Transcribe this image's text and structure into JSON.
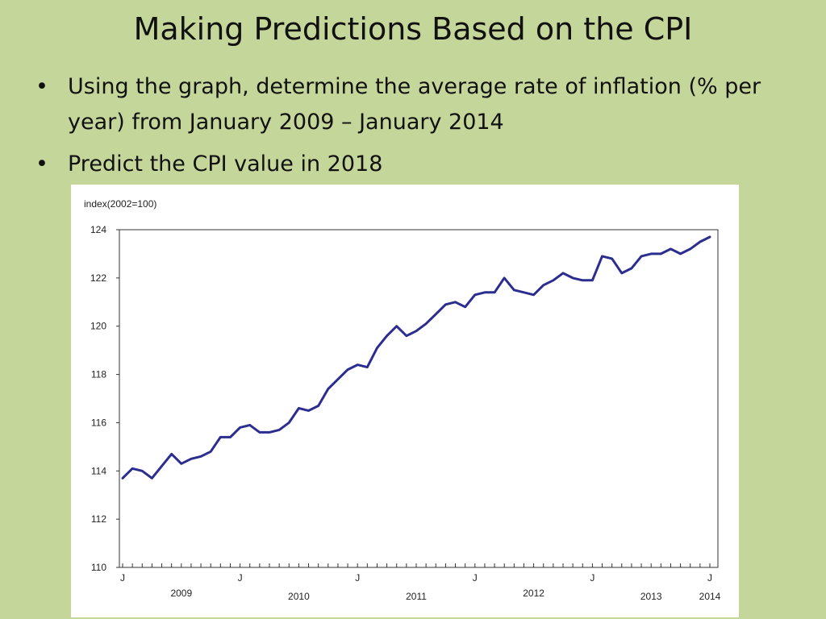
{
  "slide": {
    "title": "Making Predictions Based on the CPI",
    "bullets": [
      "Using the graph, determine the average rate of inflation (% per year) from January 2009 – January 2014",
      "Predict the CPI value in 2018"
    ]
  },
  "chart_data": {
    "type": "line",
    "title": "",
    "ylabel": "index(2002=100)",
    "xlabel": "",
    "ylim": [
      110,
      124
    ],
    "yticks": [
      110,
      112,
      114,
      116,
      118,
      120,
      122,
      124
    ],
    "grid": false,
    "line_color": "#2b2e8f",
    "x_ticks": [
      {
        "month_index": 0,
        "label": "J"
      },
      {
        "month_index": 12,
        "label": "J"
      },
      {
        "month_index": 24,
        "label": "J"
      },
      {
        "month_index": 36,
        "label": "J"
      },
      {
        "month_index": 48,
        "label": "J"
      },
      {
        "month_index": 60,
        "label": "J"
      }
    ],
    "year_labels": [
      {
        "label": "2009",
        "month_index": 6
      },
      {
        "label": "2010",
        "month_index": 18
      },
      {
        "label": "2011",
        "month_index": 30
      },
      {
        "label": "2012",
        "month_index": 42
      },
      {
        "label": "2013",
        "month_index": 54
      },
      {
        "label": "2014",
        "month_index": 60
      }
    ],
    "series": [
      {
        "start": "2009-01",
        "values": [
          113.7,
          114.1,
          114.0,
          113.7,
          114.2,
          114.7,
          114.3,
          114.5,
          114.6,
          114.8,
          115.4,
          115.4,
          115.8,
          115.9,
          115.6,
          115.6,
          115.7,
          116.0,
          116.6,
          116.5,
          116.7,
          117.4,
          117.8,
          118.2,
          118.4,
          118.3,
          119.1,
          119.6,
          120.0,
          119.6,
          119.8,
          120.1,
          120.5,
          120.9,
          121.0,
          120.8,
          121.3,
          121.4,
          121.4,
          122.0,
          121.5,
          121.4,
          121.3,
          121.7,
          121.9,
          122.2,
          122.0,
          121.9,
          121.9,
          122.9,
          122.8,
          122.2,
          122.4,
          122.9,
          123.0,
          123.0,
          123.2,
          123.0,
          123.2,
          123.5,
          123.7
        ]
      }
    ]
  }
}
